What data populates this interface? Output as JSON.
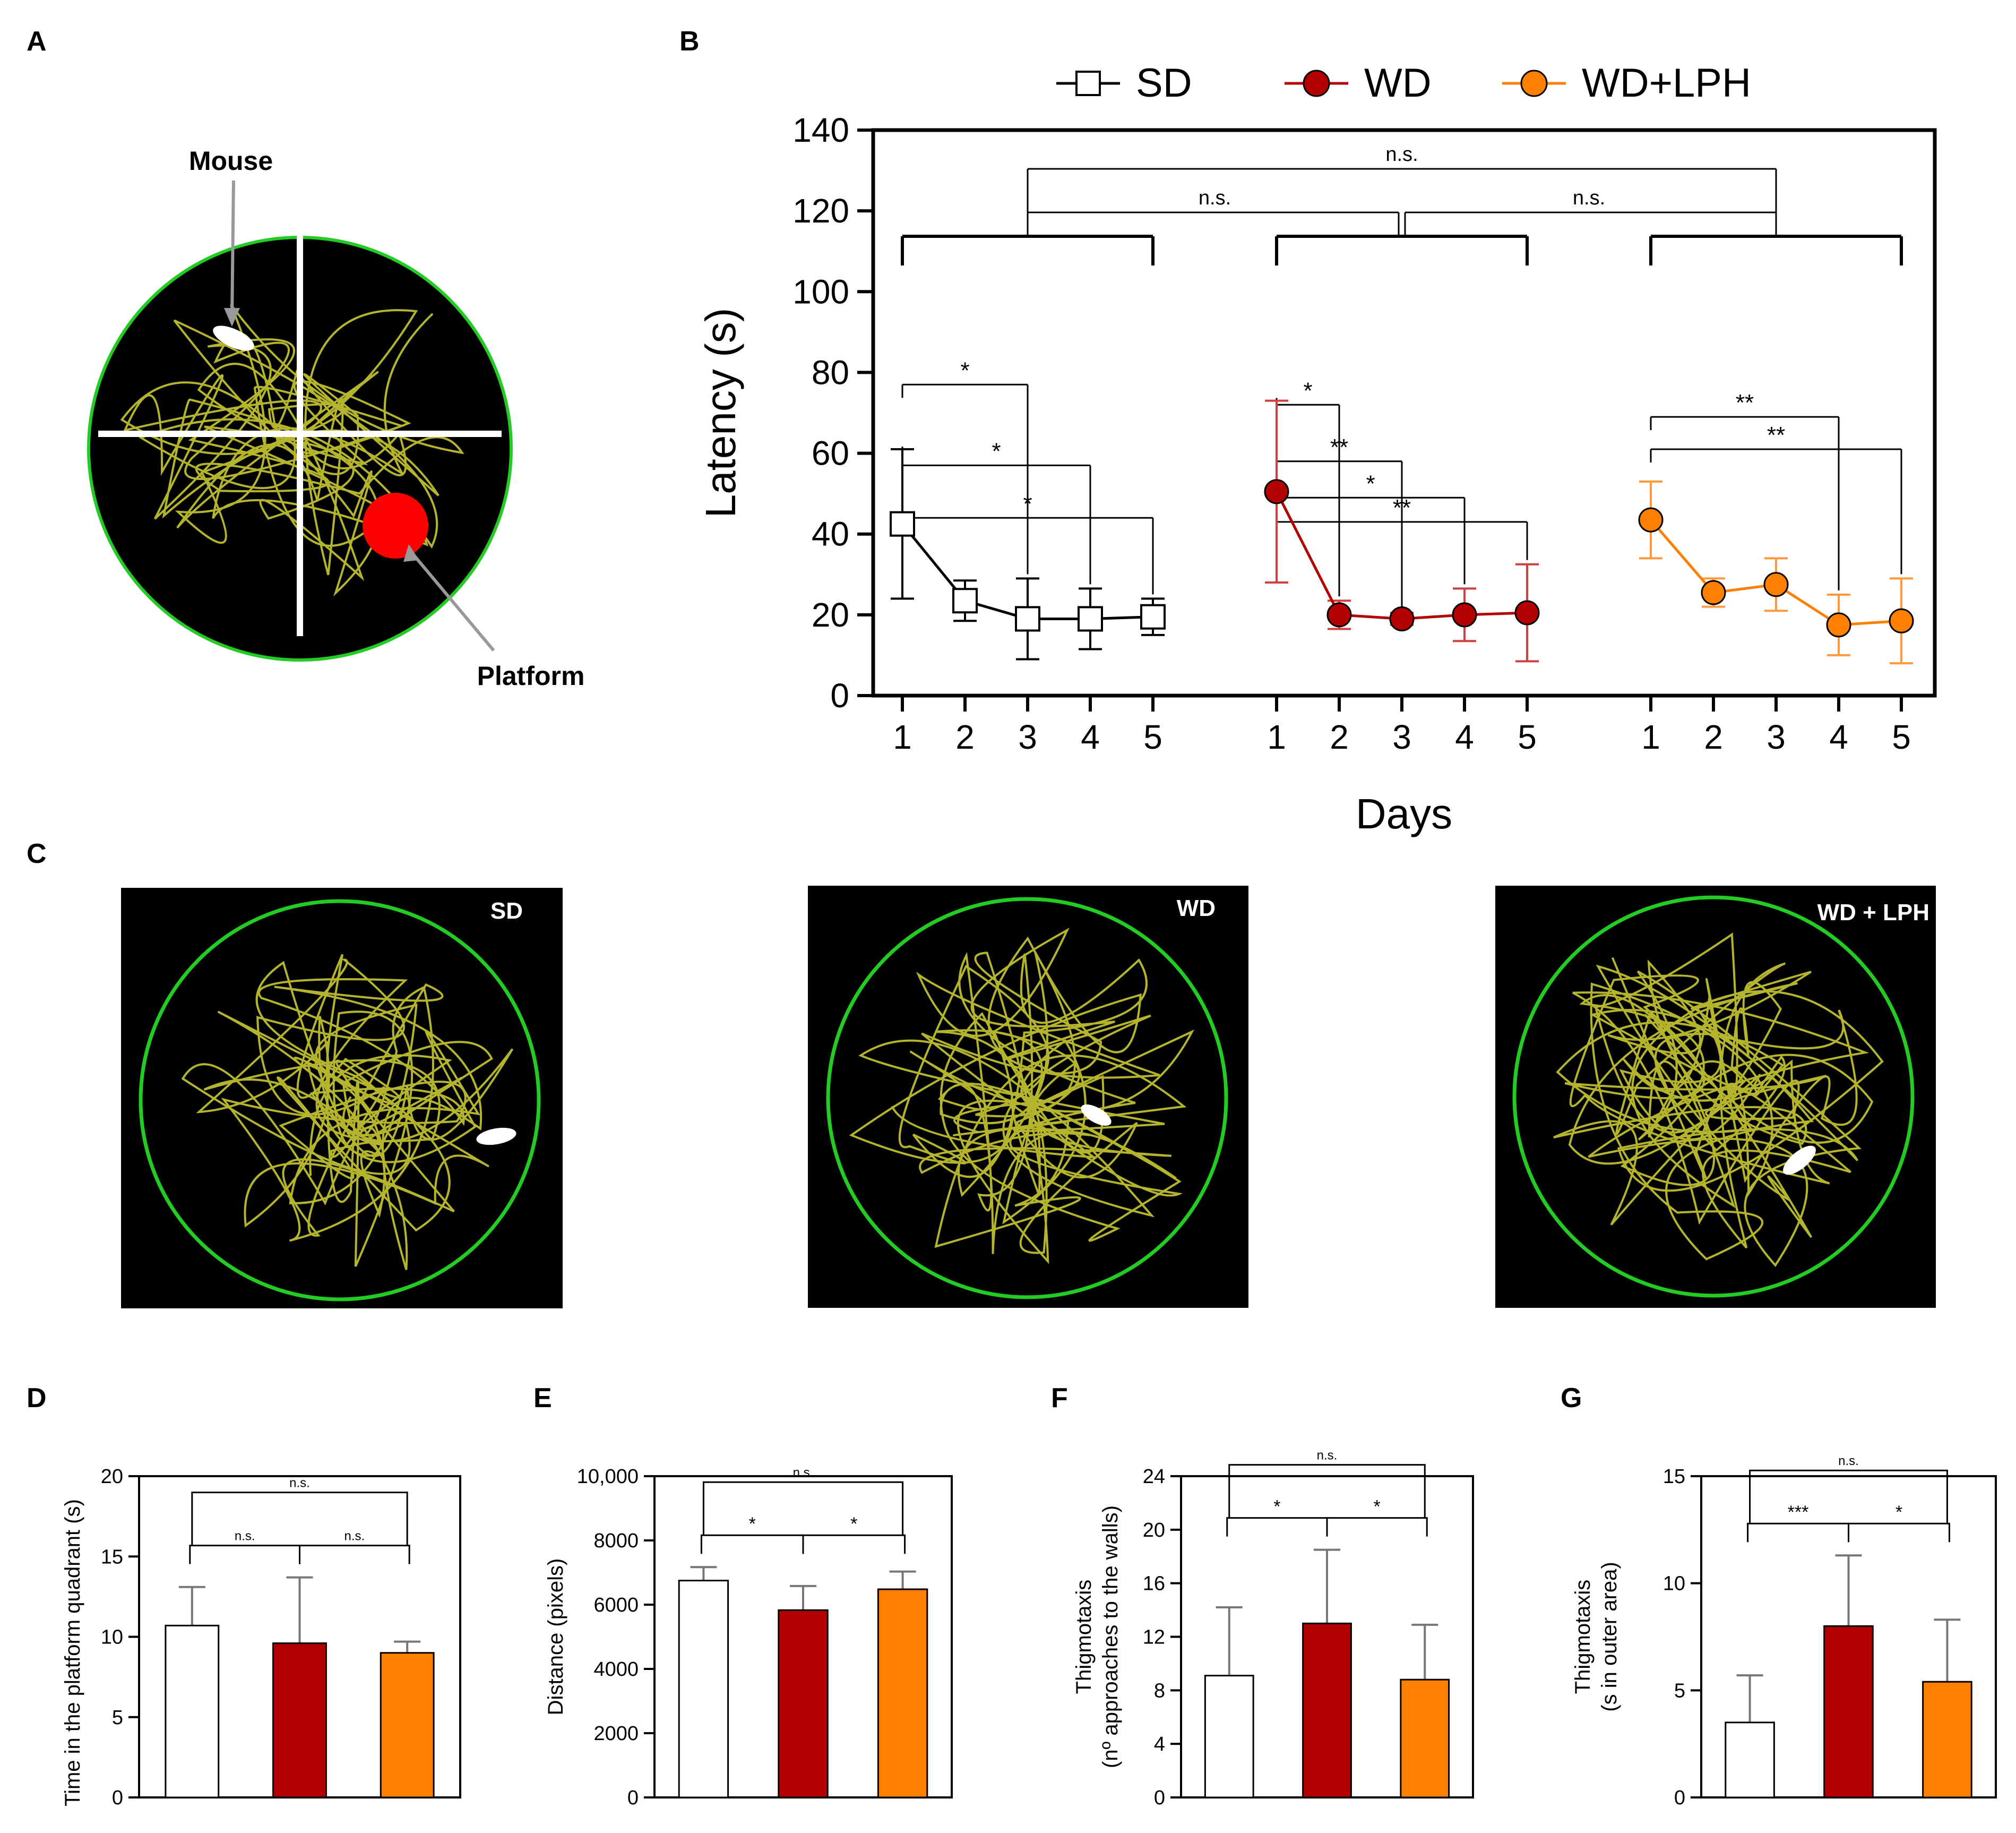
{
  "colors": {
    "sd": "#ffffff",
    "wd": "#b30000",
    "wdlph": "#ff8000",
    "arena_border": "#22cc22",
    "track": "#c8c832",
    "platform": "#ff0000"
  },
  "panelA": {
    "letter": "A",
    "mouse_label": "Mouse",
    "platform_label": "Platform"
  },
  "panelC": {
    "letter": "C",
    "arenas": [
      {
        "label": "SD"
      },
      {
        "label": "WD"
      },
      {
        "label": "WD + LPH"
      }
    ]
  },
  "chart_data": [
    {
      "panel": "B",
      "type": "line",
      "title": "",
      "xlabel": "Days",
      "ylabel": "Latency (s)",
      "ylim": [
        0,
        140
      ],
      "yticks": [
        0,
        20,
        40,
        60,
        80,
        100,
        120,
        140
      ],
      "categories": [
        "1",
        "2",
        "3",
        "4",
        "5"
      ],
      "legend": [
        "SD",
        "WD",
        "WD+LPH"
      ],
      "legend_position": "top",
      "series": [
        {
          "name": "SD",
          "values": [
            42.5,
            23.5,
            19,
            19,
            19.5
          ],
          "err": [
            18.5,
            5,
            10,
            7.5,
            4.5
          ]
        },
        {
          "name": "WD",
          "values": [
            50.5,
            20,
            19,
            20,
            20.5
          ],
          "err": [
            22.5,
            3.5,
            1.5,
            6.5,
            12
          ]
        },
        {
          "name": "WD+LPH",
          "values": [
            43.5,
            25.5,
            27.5,
            17.5,
            18.5
          ],
          "err": [
            9.5,
            3.5,
            6.5,
            7.5,
            10.5
          ]
        }
      ],
      "annotations": {
        "between_groups": [
          {
            "from": "SD",
            "to": "WD",
            "label": "n.s."
          },
          {
            "from": "WD",
            "to": "WD+LPH",
            "label": "n.s."
          },
          {
            "from": "SD",
            "to": "WD+LPH",
            "label": "n.s."
          }
        ],
        "within_groups": [
          {
            "group": "SD",
            "from_day": 1,
            "to_day": 3,
            "label": "*"
          },
          {
            "group": "SD",
            "from_day": 1,
            "to_day": 4,
            "label": "*"
          },
          {
            "group": "SD",
            "from_day": 1,
            "to_day": 5,
            "label": "*"
          },
          {
            "group": "WD",
            "from_day": 1,
            "to_day": 2,
            "label": "*"
          },
          {
            "group": "WD",
            "from_day": 1,
            "to_day": 3,
            "label": "**"
          },
          {
            "group": "WD",
            "from_day": 1,
            "to_day": 4,
            "label": "*"
          },
          {
            "group": "WD",
            "from_day": 1,
            "to_day": 5,
            "label": "**"
          },
          {
            "group": "WD+LPH",
            "from_day": 1,
            "to_day": 4,
            "label": "**"
          },
          {
            "group": "WD+LPH",
            "from_day": 1,
            "to_day": 5,
            "label": "**"
          }
        ]
      }
    },
    {
      "panel": "D",
      "type": "bar",
      "ylabel": "Time in the platform quadrant (s)",
      "ylim": [
        0,
        20
      ],
      "yticks": [
        "0",
        "5",
        "10",
        "15",
        "20"
      ],
      "ytick_values": [
        0,
        5,
        10,
        15,
        20
      ],
      "categories": [
        "SD",
        "WD",
        "WD+LPH"
      ],
      "values": [
        10.7,
        9.6,
        9.0
      ],
      "err": [
        2.4,
        4.1,
        0.7
      ],
      "annotations": [
        {
          "from": "SD",
          "to": "WD+LPH",
          "label": "n.s.",
          "level": 2
        },
        {
          "from": "SD",
          "to": "WD",
          "label": "n.s.",
          "level": 1
        },
        {
          "from": "WD",
          "to": "WD+LPH",
          "label": "n.s.",
          "level": 1
        }
      ]
    },
    {
      "panel": "E",
      "type": "bar",
      "ylabel": "Distance (pixels)",
      "ylim": [
        0,
        10000
      ],
      "yticks": [
        "0",
        "2000",
        "4000",
        "6000",
        "8000",
        "10,000"
      ],
      "ytick_values": [
        0,
        2000,
        4000,
        6000,
        8000,
        10000
      ],
      "categories": [
        "SD",
        "WD",
        "WD+LPH"
      ],
      "values": [
        6750,
        5830,
        6480
      ],
      "err": [
        420,
        750,
        550
      ],
      "annotations": [
        {
          "from": "SD",
          "to": "WD+LPH",
          "label": "n.s.",
          "level": 2
        },
        {
          "from": "SD",
          "to": "WD",
          "label": "*",
          "level": 1
        },
        {
          "from": "WD",
          "to": "WD+LPH",
          "label": "*",
          "level": 1
        }
      ]
    },
    {
      "panel": "F",
      "type": "bar",
      "ylabel": "Thigmotaxis (nº approaches to the walls)",
      "ylabel_lines": [
        "Thigmotaxis",
        "(nº approaches to the walls)"
      ],
      "ylim": [
        0,
        24
      ],
      "yticks": [
        "0",
        "4",
        "8",
        "12",
        "16",
        "20",
        "24"
      ],
      "ytick_values": [
        0,
        4,
        8,
        12,
        16,
        20,
        24
      ],
      "categories": [
        "SD",
        "WD",
        "WD+LPH"
      ],
      "values": [
        9.1,
        13.0,
        8.8
      ],
      "err": [
        5.1,
        5.5,
        4.1
      ],
      "annotations": [
        {
          "from": "SD",
          "to": "WD+LPH",
          "label": "n.s.",
          "level": 2
        },
        {
          "from": "SD",
          "to": "WD",
          "label": "*",
          "level": 1
        },
        {
          "from": "WD",
          "to": "WD+LPH",
          "label": "*",
          "level": 1
        }
      ]
    },
    {
      "panel": "G",
      "type": "bar",
      "ylabel": "Thigmotaxis (s in outer area)",
      "ylabel_lines": [
        "Thigmotaxis",
        "(s in outer area)"
      ],
      "ylim": [
        0,
        15
      ],
      "yticks": [
        "0",
        "5",
        "10",
        "15"
      ],
      "ytick_values": [
        0,
        5,
        10,
        15
      ],
      "categories": [
        "SD",
        "WD",
        "WD+LPH"
      ],
      "values": [
        3.5,
        8.0,
        5.4
      ],
      "err": [
        2.2,
        3.3,
        2.9
      ],
      "annotations": [
        {
          "from": "SD",
          "to": "WD+LPH",
          "label": "n.s.",
          "level": 2
        },
        {
          "from": "SD",
          "to": "WD",
          "label": "***",
          "level": 1
        },
        {
          "from": "WD",
          "to": "WD+LPH",
          "label": "*",
          "level": 1
        }
      ]
    }
  ]
}
